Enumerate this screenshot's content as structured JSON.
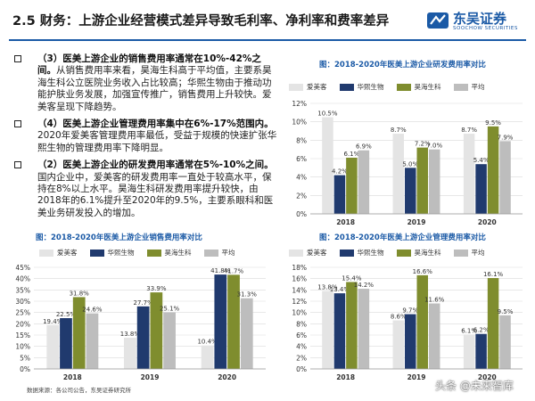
{
  "header": {
    "title": "2.5 财务：上游企业经营模式差异导致毛利率、净利率和费率差异",
    "logo_cn": "东吴证券",
    "logo_en": "SOOCHOW SECURITIES"
  },
  "bullets": [
    {
      "head": "（3）医美上游企业的销售费用率通常在10%-42%之间。",
      "body": "从销售费用率来看，昊海生科高于平均值，主要系昊海生科公立医院业务收入占比较高；华熙生物由于推动功能护肤业务发展，加强宣传推广，销售费用上升较快。爱美客呈现下降趋势。"
    },
    {
      "head": "（4）医美上游企业管理费用率集中在6%-17%范围内。",
      "body": "2020年爱美客管理费用率最低，受益于规模的快速扩张华熙生物的管理费用率下降明显。"
    },
    {
      "head": "（2）医美上游企业的研发费用率通常在5%-10%之间。",
      "body": "国内企业中，爱美客的研发费用率一直处于较高水平，保持在8%以上水平。昊海生科研发费用率提升较快，由2018年的6.1%提升至2020年的9.5%，主要系眼科和医美业务研发投入的增加。"
    }
  ],
  "legend": [
    "爱美客",
    "华熙生物",
    "昊海生科",
    "平均"
  ],
  "colors": {
    "accent": "#1b5aa6",
    "series": [
      "#e4e4e4",
      "#203a6e",
      "#7f8d2e",
      "#bdbdbd"
    ]
  },
  "source": "数据来源：各公司公告，东吴证券研究所",
  "watermark": "头条 @未来智库",
  "chart_data": [
    {
      "type": "bar",
      "title": "图：2018-2020年医美上游企业研发费用率对比",
      "categories": [
        "2018",
        "2019",
        "2020"
      ],
      "ylim": [
        0,
        12
      ],
      "yticks": [
        "0%",
        "2%",
        "4%",
        "6%",
        "8%",
        "10%",
        "12%"
      ],
      "series": [
        {
          "name": "爱美客",
          "values": [
            10.5,
            8.7,
            8.7
          ],
          "labels": [
            "10.5%",
            "8.7%",
            "8.7%"
          ]
        },
        {
          "name": "华熙生物",
          "values": [
            4.2,
            5.0,
            5.4
          ],
          "labels": [
            "4.2%",
            "5.0%",
            "5.4%"
          ]
        },
        {
          "name": "昊海生科",
          "values": [
            6.1,
            7.2,
            9.5
          ],
          "labels": [
            "6.1%",
            "7.2%",
            "9.5%"
          ]
        },
        {
          "name": "平均",
          "values": [
            6.9,
            7.0,
            7.9
          ],
          "labels": [
            "6.9%",
            "7.0%",
            "7.9%"
          ]
        }
      ]
    },
    {
      "type": "bar",
      "title": "图：2018-2020年医美上游企业销售费用率对比",
      "categories": [
        "2018",
        "2019",
        "2020"
      ],
      "ylim": [
        0,
        45
      ],
      "yticks": [
        "0%",
        "5%",
        "10%",
        "15%",
        "20%",
        "25%",
        "30%",
        "35%",
        "40%",
        "45%"
      ],
      "series": [
        {
          "name": "爱美客",
          "values": [
            19.4,
            13.8,
            10.4
          ],
          "labels": [
            "19.4%",
            "13.8%",
            "10.4%"
          ]
        },
        {
          "name": "华熙生物",
          "values": [
            22.5,
            27.7,
            41.8
          ],
          "labels": [
            "22.5%",
            "27.7%",
            "41.8%"
          ]
        },
        {
          "name": "昊海生科",
          "values": [
            31.8,
            33.9,
            41.7
          ],
          "labels": [
            "31.8%",
            "33.9%",
            "41.7%"
          ]
        },
        {
          "name": "平均",
          "values": [
            24.6,
            25.1,
            31.3
          ],
          "labels": [
            "24.6%",
            "25.1%",
            "31.3%"
          ]
        }
      ]
    },
    {
      "type": "bar",
      "title": "图：2018-2020年医美上游企业管理费用率对比",
      "categories": [
        "2018",
        "2019",
        "2020"
      ],
      "ylim": [
        0,
        18
      ],
      "yticks": [
        "0%",
        "2%",
        "4%",
        "6%",
        "8%",
        "10%",
        "12%",
        "14%",
        "16%",
        "18%"
      ],
      "series": [
        {
          "name": "爱美客",
          "values": [
            13.8,
            8.6,
            6.1
          ],
          "labels": [
            "13.8%",
            "8.6%",
            "6.1%"
          ]
        },
        {
          "name": "华熙生物",
          "values": [
            13.4,
            9.7,
            6.2
          ],
          "labels": [
            "13.4%",
            "9.7%",
            "6.2%"
          ]
        },
        {
          "name": "昊海生科",
          "values": [
            15.4,
            16.6,
            16.1
          ],
          "labels": [
            "15.4%",
            "16.6%",
            "16.1%"
          ]
        },
        {
          "name": "平均",
          "values": [
            14.2,
            11.6,
            9.5
          ],
          "labels": [
            "14.2%",
            "11.6%",
            "9.5%"
          ]
        }
      ]
    }
  ]
}
